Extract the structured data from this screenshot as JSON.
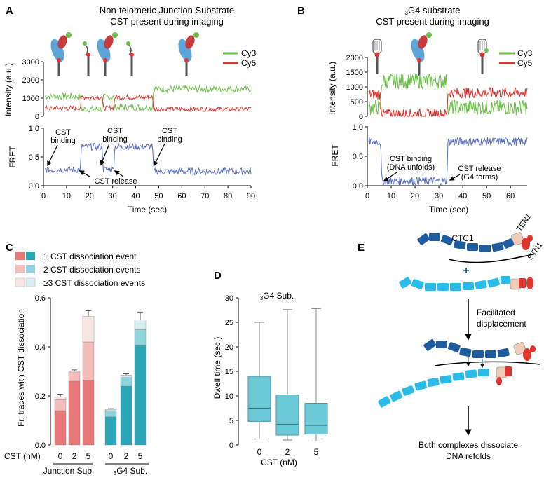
{
  "colors": {
    "cy3": "#6cc04a",
    "cy5": "#e0342e",
    "fret": "#5a6fc0",
    "darkblue": "#1f5c9e",
    "lightblue": "#2bbbe8",
    "teal_dark": "#2aa6b8",
    "teal_light": "#8fd3dd",
    "teal_pale": "#d8eef1",
    "red_dark": "#e87878",
    "red_light": "#f5bcbc",
    "red_pale": "#f7e6e2",
    "box_fill": "#6cc9d6",
    "box_edge": "#4a9aa8",
    "ten1": "#f0cbb8",
    "stn1": "#e0342e"
  },
  "panelA": {
    "letter": "A",
    "title_line1": "Non-telomeric Junction Substrate",
    "title_line2": "CST present during imaging",
    "legend": [
      "Cy3",
      "Cy5"
    ],
    "intensity_ylabel": "Intensity (a.u.)",
    "intensity_ticks": [
      "3000",
      "2000",
      "1000",
      "0"
    ],
    "fret_ylabel": "FRET",
    "fret_ticks": [
      "1.0",
      "0.5",
      "0.0"
    ],
    "xlabel": "Time (sec)",
    "xticks": [
      "0",
      "10",
      "20",
      "30",
      "40",
      "50",
      "60",
      "70",
      "80",
      "90"
    ],
    "annotations": {
      "b1_l1": "CST",
      "b1_l2": "binding",
      "b2_l1": "CST",
      "b2_l2": "binding",
      "b3_l1": "CST",
      "b3_l2": "binding",
      "release": "CST release"
    }
  },
  "panelB": {
    "letter": "B",
    "title_pre": "3",
    "title_line1": "G4 substrate",
    "title_line2": "CST present during imaging",
    "legend": [
      "Cy3",
      "Cy5"
    ],
    "intensity_ylabel": "Intensity (a.u.)",
    "intensity_ticks": [
      "2000",
      "1500",
      "1000",
      "500",
      "0"
    ],
    "fret_ylabel": "FRET",
    "fret_ticks": [
      "1.0",
      "0.5",
      "0.0"
    ],
    "xlabel": "Time (sec)",
    "xticks": [
      "0",
      "10",
      "20",
      "30",
      "40",
      "50",
      "60"
    ],
    "annotations": {
      "bind_l1": "CST binding",
      "bind_l2": "(DNA unfolds)",
      "rel_l1": "CST release",
      "rel_l2": "(G4 forms)"
    }
  },
  "panelC": {
    "letter": "C",
    "legend": [
      "1 CST dissociation event",
      "2 CST dissociation events",
      "≥3 CST dissociation events"
    ],
    "ylabel": "Fr. traces with CST dissociation",
    "yticks": [
      "0.0",
      "0.2",
      "0.4",
      "0.6"
    ],
    "xaxis_label": "CST (nM)",
    "group_labels": {
      "junction": "Junction Sub.",
      "g4_sub": "3",
      "g4_rest": "G4 Sub."
    }
  },
  "panelD": {
    "letter": "D",
    "title_sub": "3",
    "title_rest": "G4 Sub.",
    "ylabel": "Dwell time (sec.)",
    "yticks": [
      "0",
      "5",
      "10",
      "15",
      "20",
      "25",
      "30"
    ],
    "xlabel": "CST (nM)"
  },
  "panelE": {
    "letter": "E",
    "ctc1": "CTC1",
    "ten1": "TEN1",
    "stn1": "STN1",
    "plus": "+",
    "step_l1": "Facilitated",
    "step_l2": "displacement",
    "final_l1": "Both complexes dissociate",
    "final_l2": "DNA refolds"
  },
  "chart_data": [
    {
      "type": "line",
      "title": "Non-telomeric Junction Substrate — intensity",
      "xlabel": "Time (sec)",
      "ylabel": "Intensity (a.u.)",
      "xlim": [
        0,
        90
      ],
      "ylim": [
        0,
        3000
      ],
      "series": [
        {
          "name": "Cy3",
          "x": [
            0,
            15.5,
            16,
            25,
            25.5,
            30,
            30.5,
            47,
            47.5,
            90
          ],
          "y": [
            1100,
            1100,
            400,
            400,
            1050,
            1050,
            500,
            500,
            1500,
            1500
          ]
        },
        {
          "name": "Cy5",
          "x": [
            0,
            15.5,
            16,
            25,
            25.5,
            30,
            30.5,
            47,
            47.5,
            90
          ],
          "y": [
            450,
            450,
            1050,
            1050,
            450,
            450,
            1050,
            1050,
            400,
            400
          ]
        }
      ]
    },
    {
      "type": "line",
      "title": "Non-telomeric Junction Substrate — FRET",
      "xlabel": "Time (sec)",
      "ylabel": "FRET",
      "xlim": [
        0,
        90
      ],
      "ylim": [
        0,
        1
      ],
      "series": [
        {
          "name": "FRET",
          "x": [
            0,
            15.5,
            16,
            25,
            25.5,
            30,
            30.5,
            47,
            47.5,
            90
          ],
          "y": [
            0.28,
            0.28,
            0.68,
            0.68,
            0.28,
            0.28,
            0.68,
            0.68,
            0.25,
            0.25
          ]
        }
      ]
    },
    {
      "type": "line",
      "title": "3G4 substrate — intensity",
      "xlabel": "Time (sec)",
      "ylabel": "Intensity (a.u.)",
      "xlim": [
        0,
        67
      ],
      "ylim": [
        0,
        2000
      ],
      "series": [
        {
          "name": "Cy3",
          "x": [
            0,
            5,
            5.5,
            33,
            33.5,
            67
          ],
          "y": [
            300,
            300,
            1200,
            1200,
            300,
            300
          ]
        },
        {
          "name": "Cy5",
          "x": [
            0,
            5,
            5.5,
            33,
            33.5,
            67
          ],
          "y": [
            750,
            750,
            80,
            80,
            800,
            800
          ]
        }
      ]
    },
    {
      "type": "line",
      "title": "3G4 substrate — FRET",
      "xlabel": "Time (sec)",
      "ylabel": "FRET",
      "xlim": [
        0,
        67
      ],
      "ylim": [
        0,
        1
      ],
      "series": [
        {
          "name": "FRET",
          "x": [
            0,
            5,
            5.5,
            33,
            33.5,
            67
          ],
          "y": [
            0.75,
            0.75,
            0.08,
            0.08,
            0.75,
            0.75
          ]
        }
      ]
    },
    {
      "type": "bar",
      "stacked": true,
      "ylabel": "Fr. traces with CST dissociation",
      "xlabel": "CST (nM)",
      "ylim": [
        0,
        0.6
      ],
      "categories": [
        "0",
        "2",
        "5",
        "0",
        "2",
        "5"
      ],
      "groups": [
        "Junction Sub.",
        "3G4 Sub."
      ],
      "series": [
        {
          "name": "1 CST dissociation event",
          "values": [
            0.14,
            0.26,
            0.265,
            0.115,
            0.24,
            0.405
          ]
        },
        {
          "name": "2 CST dissociation events",
          "values": [
            0.045,
            0.035,
            0.155,
            0.025,
            0.035,
            0.065
          ]
        },
        {
          "name": "≥3 CST dissociation events",
          "values": [
            0.01,
            0.005,
            0.105,
            0.005,
            0.01,
            0.04
          ]
        }
      ],
      "error": [
        0.012,
        0.006,
        0.022,
        0.003,
        0.005,
        0.032
      ]
    },
    {
      "type": "box",
      "title": "3G4 Sub.",
      "xlabel": "CST (nM)",
      "ylabel": "Dwell time (sec.)",
      "ylim": [
        0,
        30
      ],
      "categories": [
        "0",
        "2",
        "5"
      ],
      "boxes": [
        {
          "min": 1.2,
          "q1": 4.8,
          "median": 7.5,
          "q3": 14,
          "max": 25
        },
        {
          "min": 1,
          "q1": 2,
          "median": 4.2,
          "q3": 10.2,
          "max": 27.6
        },
        {
          "min": 0.8,
          "q1": 2.2,
          "median": 4,
          "q3": 8.5,
          "max": 27.8
        }
      ]
    }
  ]
}
